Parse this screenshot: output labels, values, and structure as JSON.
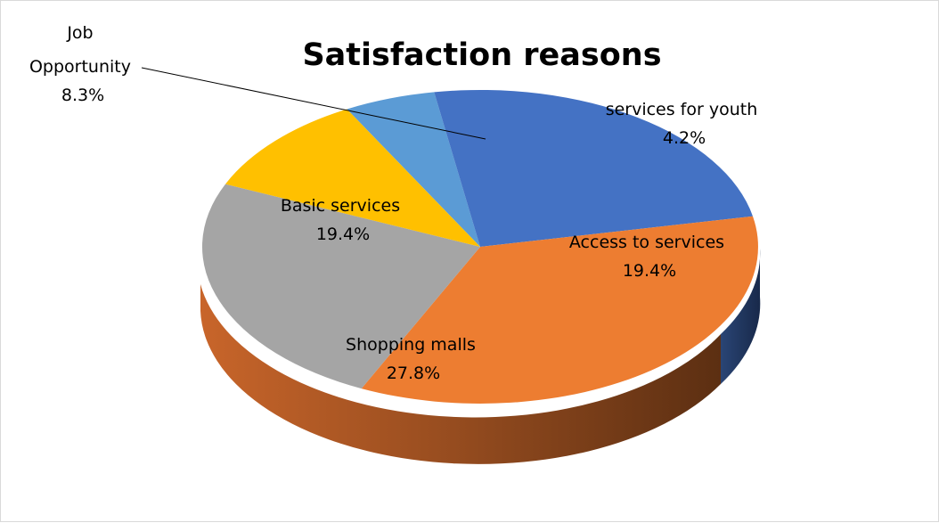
{
  "chart_data": {
    "type": "pie",
    "title": "Satisfaction reasons",
    "slices": [
      {
        "label": "services for youth",
        "value": 4.2,
        "display": "4.2%",
        "color": "#5b9bd5"
      },
      {
        "label": "Access to services",
        "value": 19.4,
        "display": "19.4%",
        "color": "#4472c4"
      },
      {
        "label": "Shopping malls",
        "value": 27.8,
        "display": "27.8%",
        "color": "#ed7d31"
      },
      {
        "label": "Basic services",
        "value": 19.4,
        "display": "19.4%",
        "color": "#a5a5a5"
      },
      {
        "label": "Job Opportunity",
        "value": 8.3,
        "display": "8.3%",
        "color": "#ffc000"
      }
    ],
    "job_label_lines": [
      "Job",
      "Opportunity"
    ],
    "legend": "none",
    "style": "3d"
  }
}
